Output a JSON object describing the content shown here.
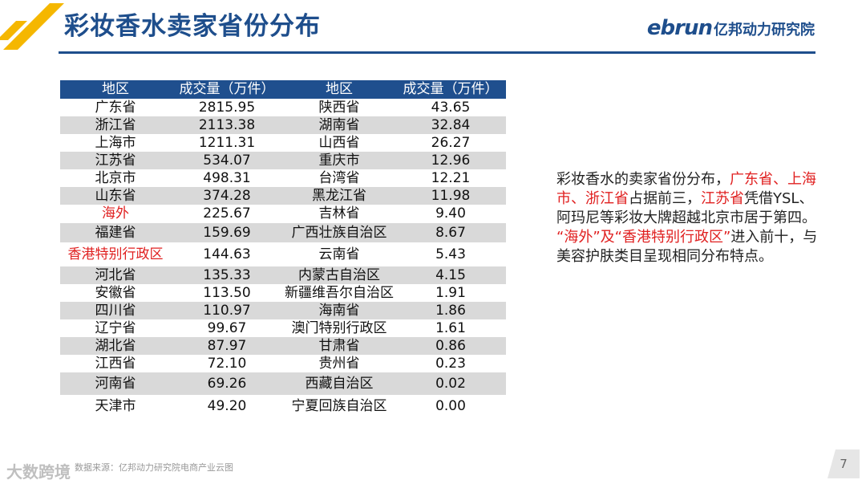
{
  "header": {
    "title": "彩妆香水卖家省份分布",
    "logo_mark": "ebrun",
    "logo_name": "亿邦动力研究院"
  },
  "table": {
    "headers": [
      "地区",
      "成交量（万件）",
      "地区",
      "成交量（万件）"
    ],
    "rows": [
      {
        "region1": "广东省",
        "value1": "2815.95",
        "region2": "陕西省",
        "value2": "43.65",
        "highlight1": false
      },
      {
        "region1": "浙江省",
        "value1": "2113.38",
        "region2": "湖南省",
        "value2": "32.84",
        "highlight1": false
      },
      {
        "region1": "上海市",
        "value1": "1211.31",
        "region2": "山西省",
        "value2": "26.27",
        "highlight1": false
      },
      {
        "region1": "江苏省",
        "value1": "534.07",
        "region2": "重庆市",
        "value2": "12.96",
        "highlight1": false
      },
      {
        "region1": "北京市",
        "value1": "498.31",
        "region2": "台湾省",
        "value2": "12.21",
        "highlight1": false
      },
      {
        "region1": "山东省",
        "value1": "374.28",
        "region2": "黑龙江省",
        "value2": "11.98",
        "highlight1": false
      },
      {
        "region1": "海外",
        "value1": "225.67",
        "region2": "吉林省",
        "value2": "9.40",
        "highlight1": true
      },
      {
        "region1": "福建省",
        "value1": "159.69",
        "region2": "广西壮族自治区",
        "value2": "8.67",
        "highlight1": false
      },
      {
        "region1": "香港特别行政区",
        "value1": "144.63",
        "region2": "云南省",
        "value2": "5.43",
        "highlight1": true
      },
      {
        "region1": "河北省",
        "value1": "135.33",
        "region2": "内蒙古自治区",
        "value2": "4.15",
        "highlight1": false
      },
      {
        "region1": "安徽省",
        "value1": "113.50",
        "region2": "新疆维吾尔自治区",
        "value2": "1.91",
        "highlight1": false
      },
      {
        "region1": "四川省",
        "value1": "110.97",
        "region2": "海南省",
        "value2": "1.86",
        "highlight1": false
      },
      {
        "region1": "辽宁省",
        "value1": "99.67",
        "region2": "澳门特别行政区",
        "value2": "1.61",
        "highlight1": false
      },
      {
        "region1": "湖北省",
        "value1": "87.97",
        "region2": "甘肃省",
        "value2": "0.86",
        "highlight1": false
      },
      {
        "region1": "江西省",
        "value1": "72.10",
        "region2": "贵州省",
        "value2": "0.23",
        "highlight1": false
      },
      {
        "region1": "河南省",
        "value1": "69.26",
        "region2": "西藏自治区",
        "value2": "0.02",
        "highlight1": false
      },
      {
        "region1": "天津市",
        "value1": "49.20",
        "region2": "宁夏回族自治区",
        "value2": "0.00",
        "highlight1": false
      }
    ]
  },
  "note": {
    "t1": "彩妆香水的卖家省份分布，",
    "t2": "广东省、上海市、浙江省",
    "t3": "占据前三，",
    "t4": "江苏省",
    "t5": "凭借YSL、阿玛尼等彩妆大牌超越北京市居于第四。",
    "t6": "“海外”及“香港特别行政区”",
    "t7": "进入前十，与美容护肤类目呈现相同分布特点。"
  },
  "footer": {
    "source": "数据来源：亿邦动力研究院电商产业云图",
    "watermark": "大数跨境",
    "page": "7"
  },
  "colors": {
    "accent_blue": "#1e4e8c",
    "accent_yellow": "#f5b700",
    "highlight_red": "#e02020",
    "row_gray": "#d9d9d9"
  }
}
